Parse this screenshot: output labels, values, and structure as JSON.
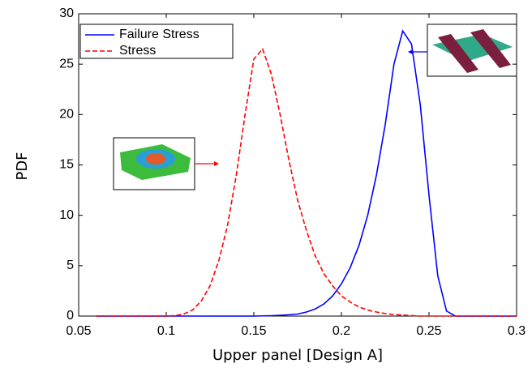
{
  "chart_data": {
    "type": "line",
    "x_label": "Upper panel [Design A]",
    "y_label": "PDF",
    "x": [
      0.06,
      0.065,
      0.07,
      0.075,
      0.08,
      0.085,
      0.09,
      0.095,
      0.1,
      0.105,
      0.11,
      0.115,
      0.12,
      0.125,
      0.13,
      0.135,
      0.14,
      0.145,
      0.15,
      0.155,
      0.16,
      0.165,
      0.17,
      0.175,
      0.18,
      0.185,
      0.19,
      0.195,
      0.2,
      0.205,
      0.21,
      0.215,
      0.22,
      0.225,
      0.23,
      0.235,
      0.24,
      0.245,
      0.25,
      0.255,
      0.26,
      0.265,
      0.27,
      0.275,
      0.28,
      0.285,
      0.29,
      0.295,
      0.3
    ],
    "series": [
      {
        "name": "Failure Stress",
        "color": "#0000ff",
        "dash": "solid",
        "values": [
          0,
          0,
          0,
          0,
          0,
          0,
          0,
          0,
          0,
          0,
          0,
          0,
          0,
          0,
          0,
          0,
          0,
          0,
          0,
          0.02,
          0.04,
          0.08,
          0.13,
          0.2,
          0.4,
          0.7,
          1.2,
          2,
          3.2,
          4.8,
          7,
          10,
          14,
          19,
          25,
          28.3,
          27,
          21,
          12,
          4,
          0.5,
          0,
          0,
          0,
          0,
          0,
          0,
          0,
          0
        ]
      },
      {
        "name": "Stress",
        "color": "#ff0000",
        "dash": "dashed",
        "values": [
          0,
          0,
          0,
          0,
          0,
          0,
          0,
          0,
          0,
          0.05,
          0.2,
          0.6,
          1.5,
          3,
          5.5,
          9,
          14,
          20,
          25.5,
          26.5,
          24,
          20,
          15.5,
          11.5,
          8.5,
          6,
          4.2,
          3,
          2,
          1.4,
          0.9,
          0.6,
          0.4,
          0.25,
          0.15,
          0.1,
          0.05,
          0,
          0,
          0,
          0,
          0,
          0,
          0,
          0,
          0,
          0,
          0,
          0
        ]
      }
    ],
    "xlim": [
      0.05,
      0.3
    ],
    "xticks": [
      0.05,
      0.1,
      0.15,
      0.2,
      0.25,
      0.3
    ],
    "ylim": [
      0,
      30
    ],
    "yticks": [
      0,
      5,
      10,
      15,
      20,
      25,
      30
    ],
    "legend": "upper left"
  }
}
